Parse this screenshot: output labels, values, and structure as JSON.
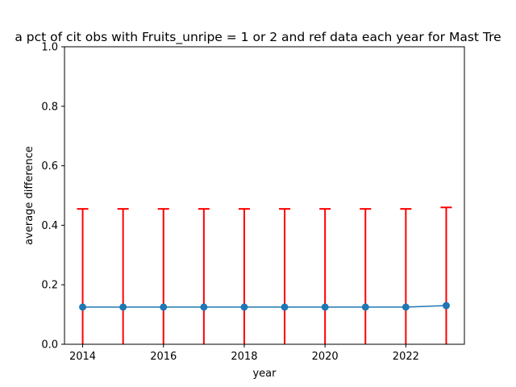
{
  "chart_data": {
    "type": "line",
    "title": "a pct of cit obs with Fruits_unripe = 1 or 2 and ref data each year for Mast Tre",
    "xlabel": "year",
    "ylabel": "average difference",
    "xlim": [
      2013.55,
      2023.45
    ],
    "ylim": [
      0.0,
      1.0
    ],
    "x_ticks": [
      2014,
      2016,
      2018,
      2020,
      2022
    ],
    "y_ticks": [
      "0.0",
      "0.2",
      "0.4",
      "0.6",
      "0.8",
      "1.0"
    ],
    "grid": false,
    "line_color": "#1f77b4",
    "error_color": "#ff0000",
    "series": [
      {
        "x": [
          2014,
          2015,
          2016,
          2017,
          2018,
          2019,
          2020,
          2021,
          2022,
          2023
        ],
        "y": [
          0.125,
          0.125,
          0.125,
          0.125,
          0.125,
          0.125,
          0.125,
          0.125,
          0.125,
          0.13
        ],
        "err": [
          0.33,
          0.33,
          0.33,
          0.33,
          0.33,
          0.33,
          0.33,
          0.33,
          0.33,
          0.33
        ]
      }
    ]
  }
}
